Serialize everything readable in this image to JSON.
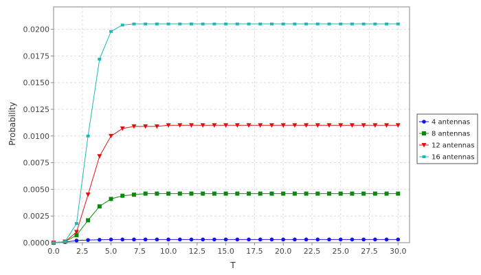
{
  "chart_data": {
    "type": "line",
    "title": "",
    "xlabel": "T",
    "ylabel": "Probability",
    "xlim": [
      0,
      31
    ],
    "ylim": [
      0,
      0.0221
    ],
    "grid": true,
    "legend_position": "right",
    "x_ticks": [
      0,
      2.5,
      5,
      7.5,
      10,
      12.5,
      15,
      17.5,
      20,
      22.5,
      25,
      27.5,
      30
    ],
    "x_tick_labels": [
      "0.0",
      "2.5",
      "5.0",
      "7.5",
      "10.0",
      "12.5",
      "15.0",
      "17.5",
      "20.0",
      "22.5",
      "25.0",
      "27.5",
      "30.0"
    ],
    "y_ticks": [
      0,
      0.0025,
      0.005,
      0.0075,
      0.01,
      0.0125,
      0.015,
      0.0175,
      0.02
    ],
    "y_tick_labels": [
      "0.0000",
      "0.0025",
      "0.0050",
      "0.0075",
      "0.0100",
      "0.0125",
      "0.0150",
      "0.0175",
      "0.0200"
    ],
    "x": [
      0,
      1,
      2,
      3,
      4,
      5,
      6,
      7,
      8,
      9,
      10,
      11,
      12,
      13,
      14,
      15,
      16,
      17,
      18,
      19,
      20,
      21,
      22,
      23,
      24,
      25,
      26,
      27,
      28,
      29,
      30
    ],
    "series": [
      {
        "name": "4 antennas",
        "color": "#1515e0",
        "marker": "circle",
        "values": [
          0,
          5e-05,
          0.0002,
          0.00025,
          0.00027,
          0.0003,
          0.0003,
          0.0003,
          0.0003,
          0.0003,
          0.0003,
          0.0003,
          0.0003,
          0.0003,
          0.0003,
          0.0003,
          0.0003,
          0.0003,
          0.0003,
          0.0003,
          0.0003,
          0.0003,
          0.0003,
          0.0003,
          0.0003,
          0.0003,
          0.0003,
          0.0003,
          0.0003,
          0.0003,
          0.0003
        ]
      },
      {
        "name": "8 antennas",
        "color": "#0a8a0a",
        "marker": "square",
        "values": [
          0,
          0.0001,
          0.0007,
          0.0021,
          0.0034,
          0.0041,
          0.0044,
          0.0045,
          0.0046,
          0.0046,
          0.0046,
          0.0046,
          0.0046,
          0.0046,
          0.0046,
          0.0046,
          0.0046,
          0.0046,
          0.0046,
          0.0046,
          0.0046,
          0.0046,
          0.0046,
          0.0046,
          0.0046,
          0.0046,
          0.0046,
          0.0046,
          0.0046,
          0.0046,
          0.0046
        ]
      },
      {
        "name": "12 antennas",
        "color": "#e01010",
        "marker": "triangle-down",
        "values": [
          0,
          0.0001,
          0.001,
          0.0045,
          0.0081,
          0.01,
          0.0107,
          0.0109,
          0.0109,
          0.0109,
          0.011,
          0.011,
          0.011,
          0.011,
          0.011,
          0.011,
          0.011,
          0.011,
          0.011,
          0.011,
          0.011,
          0.011,
          0.011,
          0.011,
          0.011,
          0.011,
          0.011,
          0.011,
          0.011,
          0.011,
          0.011
        ]
      },
      {
        "name": "16 antennas",
        "color": "#1cb8b8",
        "marker": "square-small",
        "values": [
          0,
          0.0001,
          0.0018,
          0.01,
          0.0172,
          0.0198,
          0.0204,
          0.0205,
          0.0205,
          0.0205,
          0.0205,
          0.0205,
          0.0205,
          0.0205,
          0.0205,
          0.0205,
          0.0205,
          0.0205,
          0.0205,
          0.0205,
          0.0205,
          0.0205,
          0.0205,
          0.0205,
          0.0205,
          0.0205,
          0.0205,
          0.0205,
          0.0205,
          0.0205,
          0.0205
        ]
      }
    ]
  }
}
